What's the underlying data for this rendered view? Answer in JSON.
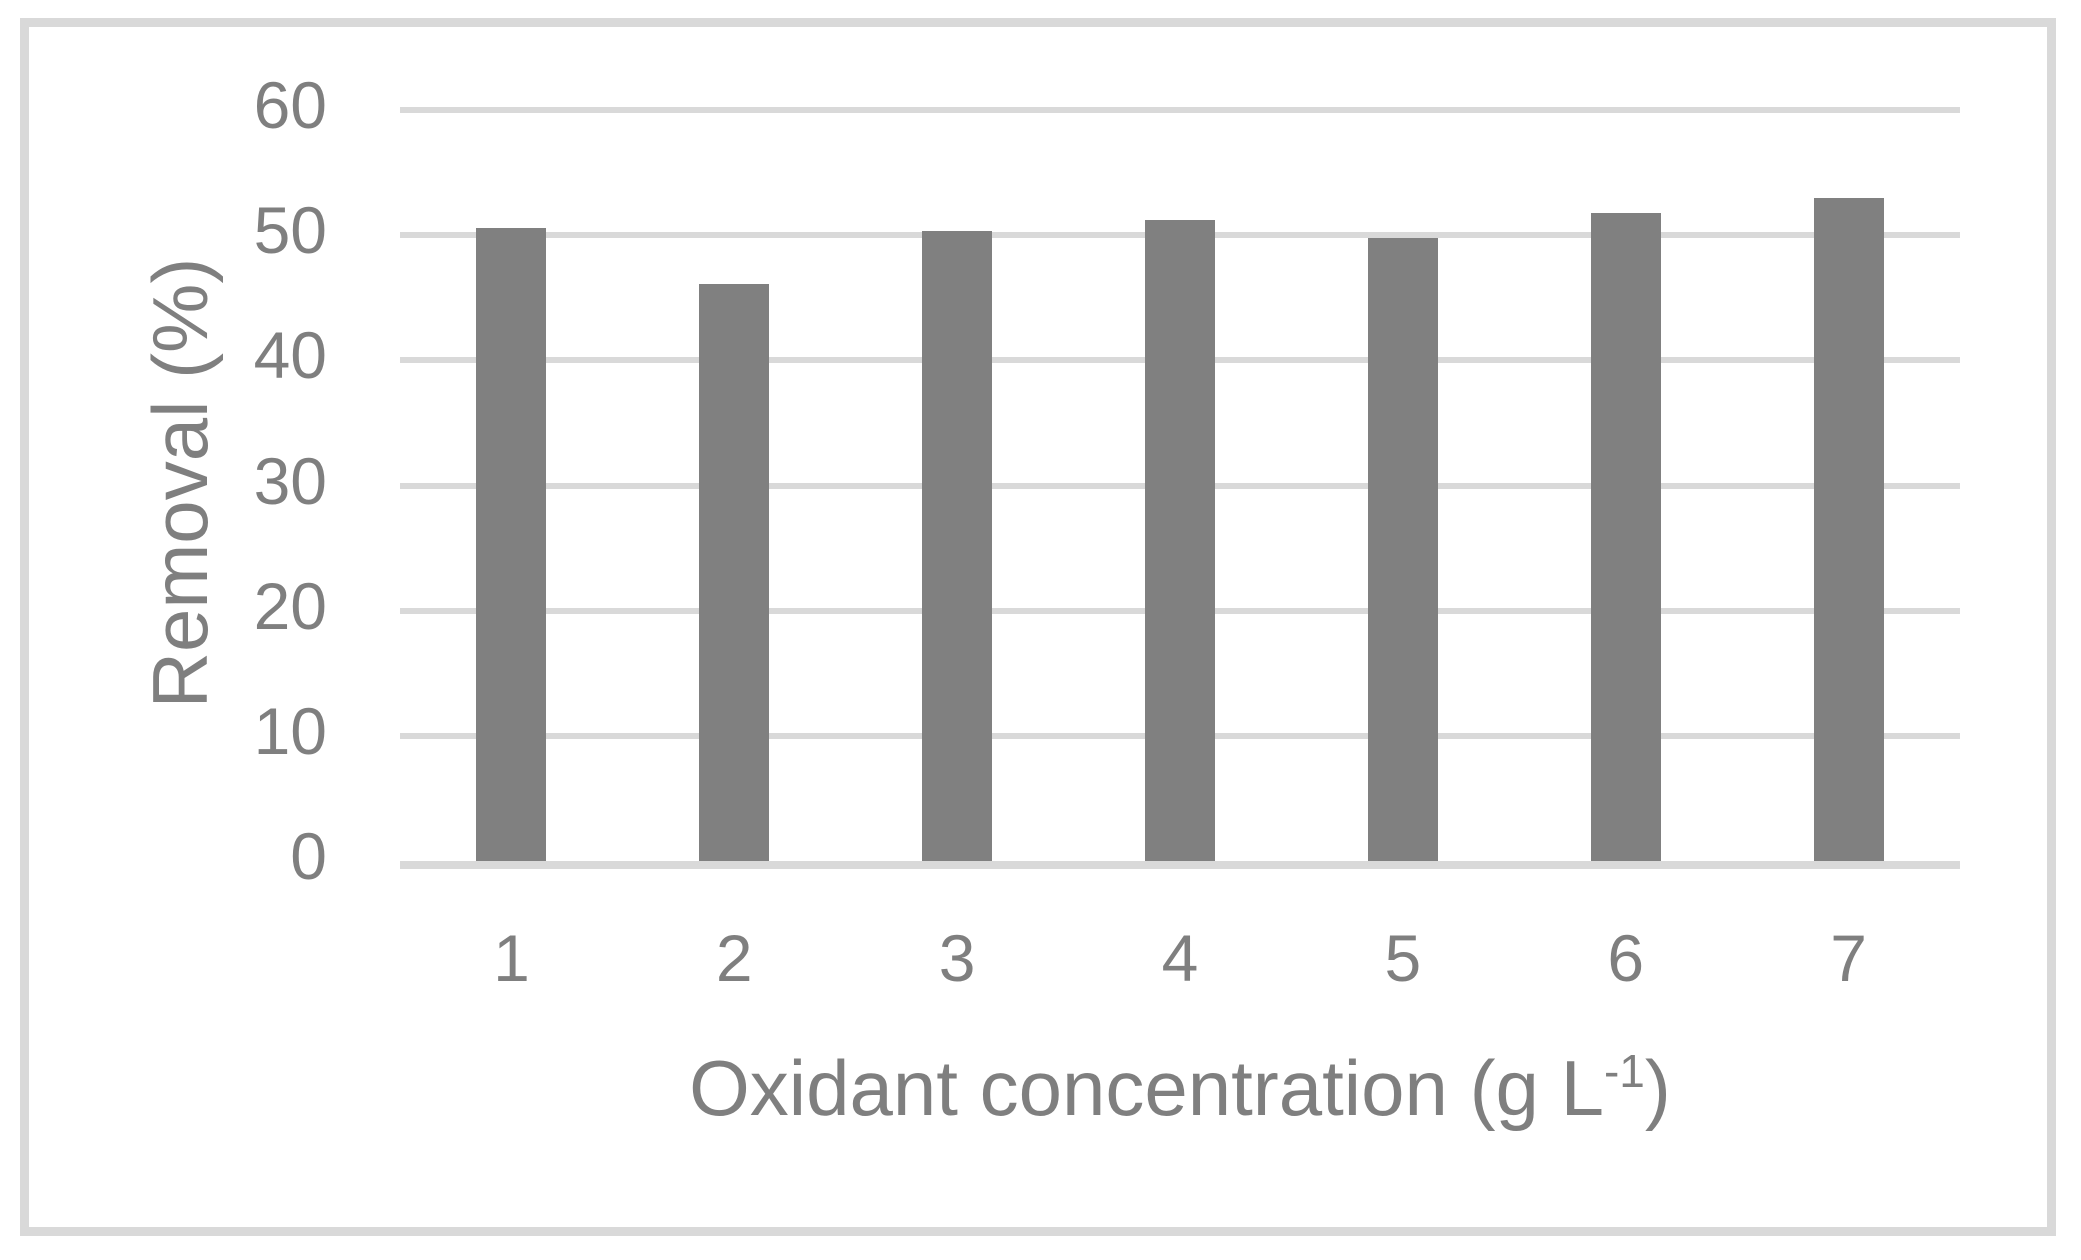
{
  "figure": {
    "background_color": "#ffffff",
    "border_color": "#d9d9d9"
  },
  "chart_data": {
    "type": "bar",
    "title": "",
    "categories": [
      "1",
      "2",
      "3",
      "4",
      "5",
      "6",
      "7"
    ],
    "values": [
      50.6,
      46.1,
      50.3,
      51.2,
      49.8,
      51.8,
      53.0
    ],
    "xlabel": "Oxidant concentration (g L⁻¹)",
    "xlabel_parts": {
      "pre": "Oxidant concentration (g L",
      "sup": "-1",
      "post": ")"
    },
    "ylabel": "Removal (%)",
    "ylim": [
      0,
      60
    ],
    "ytick_step": 10,
    "yticks": [
      "0",
      "10",
      "20",
      "30",
      "40",
      "50",
      "60"
    ],
    "grid": "horizontal",
    "legend": "none",
    "bar_color": "#808080",
    "gridline_color": "#d9d9d9",
    "axis_text_color": "#7f7f7f"
  }
}
